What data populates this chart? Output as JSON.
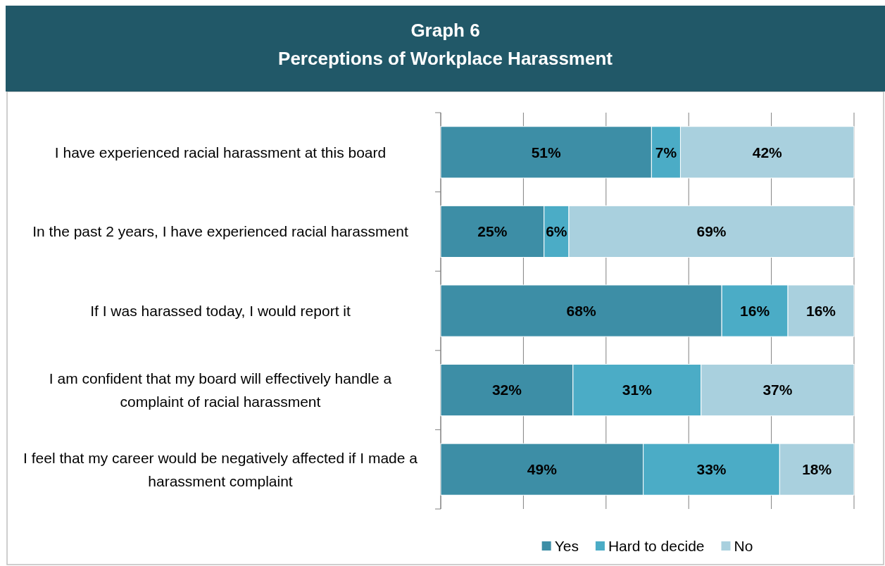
{
  "chart_data": {
    "type": "bar",
    "orientation": "horizontal",
    "stacked": true,
    "title": "Graph 6",
    "subtitle": "Perceptions of Workplace Harassment",
    "categories": [
      "I have experienced racial harassment at this board",
      "In the past 2 years, I have experienced racial harassment",
      "If I was harassed today, I would report it",
      "I am confident that my board will effectively handle a complaint of racial harassment",
      "I feel that my career would be negatively affected if I made a harassment complaint"
    ],
    "series": [
      {
        "name": "Yes",
        "color": "#3d8ea6",
        "values": [
          51,
          25,
          68,
          32,
          49
        ],
        "value_labels": [
          "51%",
          "25%",
          "68%",
          "32%",
          "49%"
        ]
      },
      {
        "name": "Hard to decide",
        "color": "#4bacc6",
        "values": [
          7,
          6,
          16,
          31,
          33
        ],
        "value_labels": [
          "7%",
          "6%",
          "16%",
          "31%",
          "33%"
        ]
      },
      {
        "name": "No",
        "color": "#a9d0de",
        "values": [
          42,
          69,
          16,
          37,
          18
        ],
        "value_labels": [
          "42%",
          "69%",
          "16%",
          "37%",
          "18%"
        ]
      }
    ],
    "xlim": [
      0,
      100
    ],
    "xticks": [
      {
        "value": 0,
        "label": null
      },
      {
        "value": 20,
        "label": null
      },
      {
        "value": 40,
        "label": null
      },
      {
        "value": 60,
        "label": null
      },
      {
        "value": 80,
        "label": null
      },
      {
        "value": 100,
        "label": null
      }
    ],
    "tick_labels": "y",
    "grid": "x",
    "legend": "bottom"
  }
}
